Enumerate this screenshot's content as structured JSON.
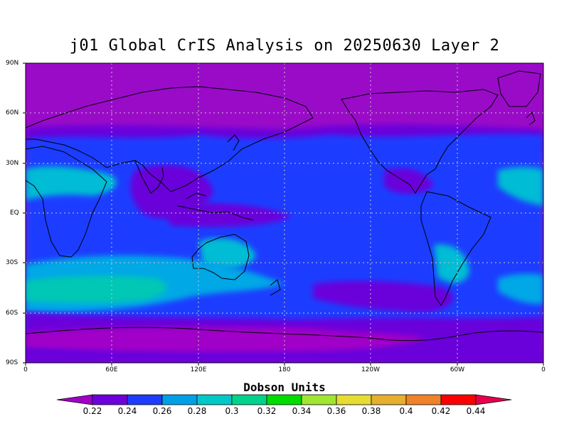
{
  "title": "j01 Global CrIS Analysis on 20250630 Layer 2",
  "y_ticks": [
    "90N",
    "60N",
    "30N",
    "EQ",
    "30S",
    "60S",
    "90S"
  ],
  "x_ticks": [
    "0",
    "60E",
    "120E",
    "180",
    "120W",
    "60W",
    "0"
  ],
  "colorbar": {
    "title": "Dobson Units",
    "labels": [
      "0.22",
      "0.24",
      "0.26",
      "0.28",
      "0.3",
      "0.32",
      "0.34",
      "0.36",
      "0.38",
      "0.4",
      "0.42",
      "0.44"
    ],
    "colors": [
      "#a000c8",
      "#6e00dc",
      "#1e3cff",
      "#00a0e6",
      "#00c8c8",
      "#00d28c",
      "#00dc00",
      "#a0e632",
      "#e6dc32",
      "#e6af2d",
      "#f08228",
      "#fa0000",
      "#e6004b"
    ]
  },
  "map": {
    "background_color": "#9a0bc8",
    "lon_range": [
      0,
      360
    ],
    "lat_range": [
      -90,
      90
    ]
  }
}
